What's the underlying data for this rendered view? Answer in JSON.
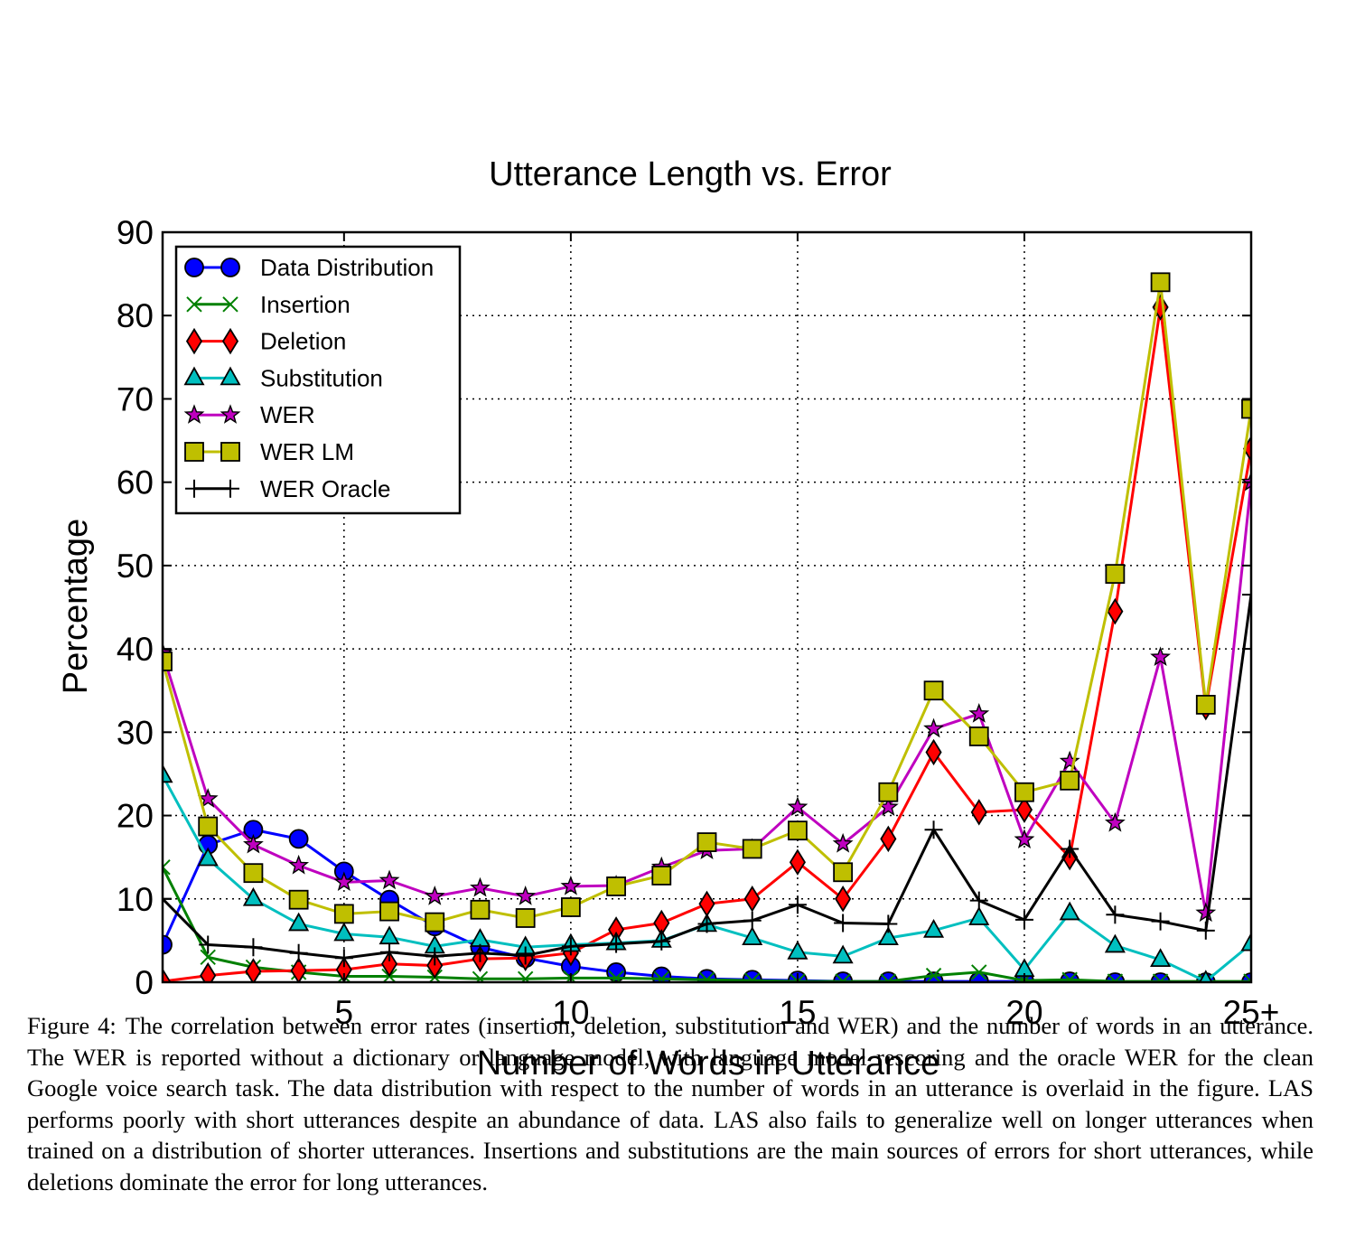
{
  "chart_data": {
    "type": "line",
    "title": "Utterance Length vs. Error",
    "xlabel": "Number of Words in Utterance",
    "ylabel": "Percentage",
    "xlim": [
      1,
      25
    ],
    "ylim": [
      0,
      90
    ],
    "x_ticks": [
      {
        "value": 5,
        "label": "5"
      },
      {
        "value": 10,
        "label": "10"
      },
      {
        "value": 15,
        "label": "15"
      },
      {
        "value": 20,
        "label": "20"
      },
      {
        "value": 25,
        "label": "25+"
      }
    ],
    "y_ticks": [
      {
        "value": 0,
        "label": "0"
      },
      {
        "value": 10,
        "label": "10"
      },
      {
        "value": 20,
        "label": "20"
      },
      {
        "value": 30,
        "label": "30"
      },
      {
        "value": 40,
        "label": "40"
      },
      {
        "value": 50,
        "label": "50"
      },
      {
        "value": 60,
        "label": "60"
      },
      {
        "value": 70,
        "label": "70"
      },
      {
        "value": 80,
        "label": "80"
      },
      {
        "value": 90,
        "label": "90"
      }
    ],
    "grid": true,
    "legend_position": "top-left",
    "x": [
      1,
      2,
      3,
      4,
      5,
      6,
      7,
      8,
      9,
      10,
      11,
      12,
      13,
      14,
      15,
      16,
      17,
      18,
      19,
      20,
      21,
      22,
      23,
      24,
      25
    ],
    "series": [
      {
        "name": "Data Distribution",
        "color": "#0000ff",
        "marker": "circle",
        "values": [
          4.5,
          16.5,
          18.3,
          17.2,
          13.3,
          9.9,
          6.7,
          4.2,
          2.9,
          1.9,
          1.2,
          0.7,
          0.4,
          0.3,
          0.2,
          0.1,
          0.1,
          0.1,
          0.1,
          0.1,
          0.1,
          0.0,
          0.0,
          0.0,
          0.0
        ]
      },
      {
        "name": "Insertion",
        "color": "#008000",
        "marker": "x",
        "values": [
          13.8,
          3.0,
          1.8,
          1.2,
          0.7,
          0.7,
          0.6,
          0.4,
          0.4,
          0.5,
          0.5,
          0.4,
          0.3,
          0.2,
          0.1,
          0.1,
          0.1,
          0.8,
          1.2,
          0.2,
          0.3,
          0.1,
          0.1,
          0.1,
          0.1
        ]
      },
      {
        "name": "Deletion",
        "color": "#ff0000",
        "marker": "diamond",
        "values": [
          0.1,
          0.8,
          1.3,
          1.4,
          1.5,
          2.2,
          2.0,
          2.8,
          2.9,
          3.5,
          6.3,
          7.1,
          9.4,
          10.0,
          14.4,
          10.0,
          17.2,
          27.6,
          20.4,
          20.7,
          15.0,
          44.5,
          81.0,
          33.0,
          64.0
        ]
      },
      {
        "name": "Substitution",
        "color": "#00bfbf",
        "marker": "triangle",
        "values": [
          24.8,
          14.8,
          10.0,
          7.0,
          5.8,
          5.4,
          4.3,
          5.1,
          4.2,
          4.5,
          4.7,
          5.0,
          6.9,
          5.3,
          3.6,
          3.1,
          5.3,
          6.2,
          7.7,
          1.5,
          8.3,
          4.4,
          2.7,
          0.1,
          4.6
        ]
      },
      {
        "name": "WER",
        "color": "#bf00bf",
        "marker": "star",
        "values": [
          39.5,
          22.0,
          16.5,
          14.0,
          12.0,
          12.2,
          10.3,
          11.3,
          10.3,
          11.5,
          11.6,
          13.8,
          15.8,
          16.0,
          21.0,
          16.6,
          21.0,
          30.4,
          32.2,
          17.1,
          26.5,
          19.1,
          39.0,
          8.3,
          60.0
        ]
      },
      {
        "name": "WER LM",
        "color": "#bfbf00",
        "marker": "square",
        "values": [
          38.5,
          18.7,
          13.1,
          9.9,
          8.2,
          8.5,
          7.2,
          8.7,
          7.7,
          9.0,
          11.5,
          12.8,
          16.8,
          16.0,
          18.2,
          13.2,
          22.8,
          35.0,
          29.5,
          22.8,
          24.2,
          49.0,
          84.0,
          33.3,
          68.8
        ]
      },
      {
        "name": "WER Oracle",
        "color": "#000000",
        "marker": "plus",
        "values": [
          10.0,
          4.5,
          4.2,
          3.5,
          2.9,
          3.6,
          3.1,
          3.5,
          3.2,
          4.3,
          4.6,
          4.9,
          7.0,
          7.4,
          9.3,
          7.1,
          7.0,
          18.3,
          9.8,
          7.5,
          16.0,
          8.1,
          7.3,
          6.2,
          46.5
        ]
      }
    ]
  },
  "caption": {
    "label": "Figure 4:",
    "text": "The correlation between error rates (insertion, deletion, substitution and WER) and the number of words in an utterance. The WER is reported without a dictionary or language model, with language model rescoring and the oracle WER for the clean Google voice search task. The data distribution with respect to the number of words in an utterance is overlaid in the figure. LAS performs poorly with short utterances despite an abundance of data. LAS also fails to generalize well on longer utterances when trained on a distribution of shorter utterances. Insertions and substitutions are the main sources of errors for short utterances, while deletions dominate the error for long utterances."
  }
}
